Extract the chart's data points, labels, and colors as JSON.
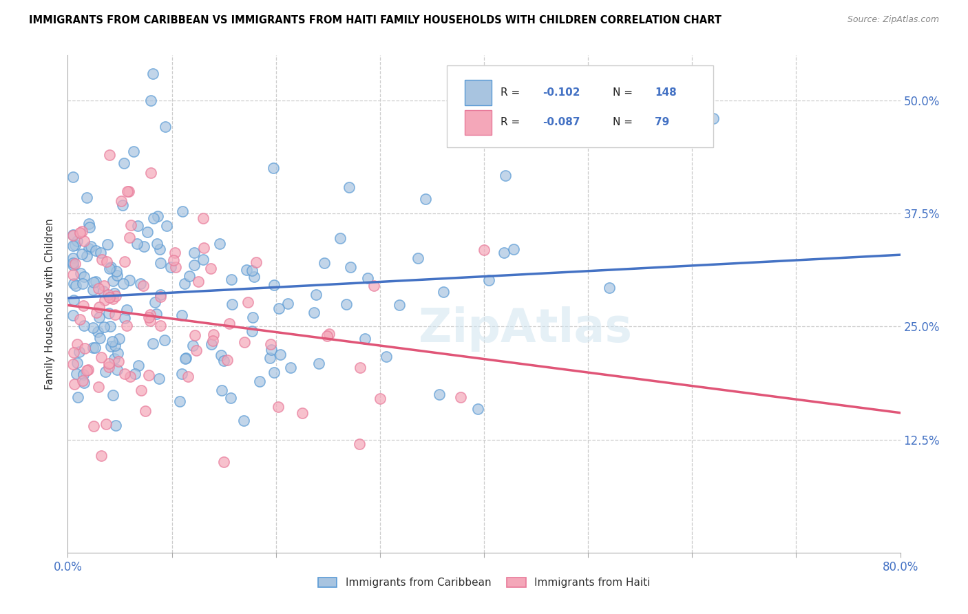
{
  "title": "IMMIGRANTS FROM CARIBBEAN VS IMMIGRANTS FROM HAITI FAMILY HOUSEHOLDS WITH CHILDREN CORRELATION CHART",
  "source": "Source: ZipAtlas.com",
  "ylabel": "Family Households with Children",
  "x_min": 0.0,
  "x_max": 0.8,
  "y_min": 0.0,
  "y_max": 0.55,
  "x_tick_pos": [
    0.0,
    0.1,
    0.2,
    0.3,
    0.4,
    0.5,
    0.6,
    0.7,
    0.8
  ],
  "x_tick_labels": [
    "0.0%",
    "",
    "",
    "",
    "",
    "",
    "",
    "",
    "80.0%"
  ],
  "y_tick_pos": [
    0.0,
    0.125,
    0.25,
    0.375,
    0.5
  ],
  "y_tick_labels_right": [
    "",
    "12.5%",
    "25.0%",
    "37.5%",
    "50.0%"
  ],
  "R_caribbean": -0.102,
  "N_caribbean": 148,
  "R_haiti": -0.087,
  "N_haiti": 79,
  "color_caribbean": "#a8c4e0",
  "color_haiti": "#f4a7b9",
  "edge_color_caribbean": "#5b9bd5",
  "edge_color_haiti": "#e87a9a",
  "line_color_caribbean": "#4472c4",
  "line_color_haiti": "#e05577",
  "watermark": "ZipAtlas",
  "legend_label_caribbean": "Immigrants from Caribbean",
  "legend_label_haiti": "Immigrants from Haiti"
}
